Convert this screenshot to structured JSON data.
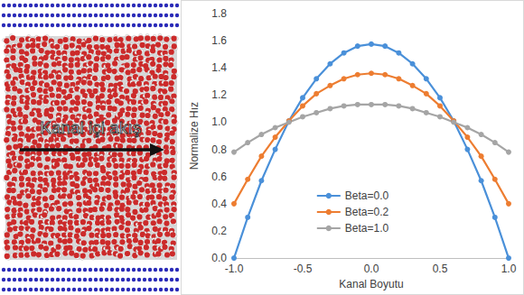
{
  "chart_data": {
    "type": "line",
    "x_label": "Kanal Boyutu",
    "y_label": "Normalize Hız",
    "x": [
      -1.0,
      -0.9,
      -0.8,
      -0.7,
      -0.6,
      -0.5,
      -0.4,
      -0.3,
      -0.2,
      -0.1,
      0.0,
      0.1,
      0.2,
      0.3,
      0.4,
      0.5,
      0.6,
      0.7,
      0.8,
      0.9,
      1.0
    ],
    "series": [
      {
        "name": "Beta=0.0",
        "color": "#4a90d9",
        "marker": "circle",
        "values": [
          0.0,
          0.3,
          0.57,
          0.8,
          1.01,
          1.18,
          1.32,
          1.43,
          1.51,
          1.56,
          1.575,
          1.56,
          1.51,
          1.43,
          1.32,
          1.18,
          1.01,
          0.8,
          0.57,
          0.3,
          0.0
        ]
      },
      {
        "name": "Beta=0.2",
        "color": "#ed7d31",
        "marker": "circle",
        "values": [
          0.4,
          0.58,
          0.75,
          0.89,
          1.01,
          1.12,
          1.21,
          1.27,
          1.32,
          1.35,
          1.36,
          1.35,
          1.32,
          1.27,
          1.21,
          1.12,
          1.01,
          0.89,
          0.75,
          0.58,
          0.4
        ]
      },
      {
        "name": "Beta=1.0",
        "color": "#a5a5a5",
        "marker": "circle",
        "values": [
          0.78,
          0.85,
          0.91,
          0.96,
          1.0,
          1.04,
          1.07,
          1.1,
          1.12,
          1.13,
          1.13,
          1.13,
          1.12,
          1.1,
          1.07,
          1.04,
          1.0,
          0.96,
          0.91,
          0.85,
          0.78
        ]
      }
    ],
    "xlim": [
      -1.0,
      1.0
    ],
    "xticks": [
      {
        "value": -1.0,
        "label": "-1.0"
      },
      {
        "value": -0.5,
        "label": "-0.5"
      },
      {
        "value": 0.0,
        "label": "0.0"
      },
      {
        "value": 0.5,
        "label": "0.5"
      },
      {
        "value": 1.0,
        "label": "1.0"
      }
    ],
    "ylim": [
      0.0,
      1.8
    ],
    "yticks": [
      {
        "value": 0.0,
        "label": "0.0"
      },
      {
        "value": 0.2,
        "label": "0.2"
      },
      {
        "value": 0.4,
        "label": "0.4"
      },
      {
        "value": 0.6,
        "label": "0.6"
      },
      {
        "value": 0.8,
        "label": "0.8"
      },
      {
        "value": 1.0,
        "label": "1.0"
      },
      {
        "value": 1.2,
        "label": "1.2"
      },
      {
        "value": 1.4,
        "label": "1.4"
      },
      {
        "value": 1.6,
        "label": "1.6"
      },
      {
        "value": 1.8,
        "label": "1.8"
      }
    ],
    "grid": false,
    "legend": "lower center"
  },
  "illustration": {
    "label": "Kanal içi akış"
  }
}
